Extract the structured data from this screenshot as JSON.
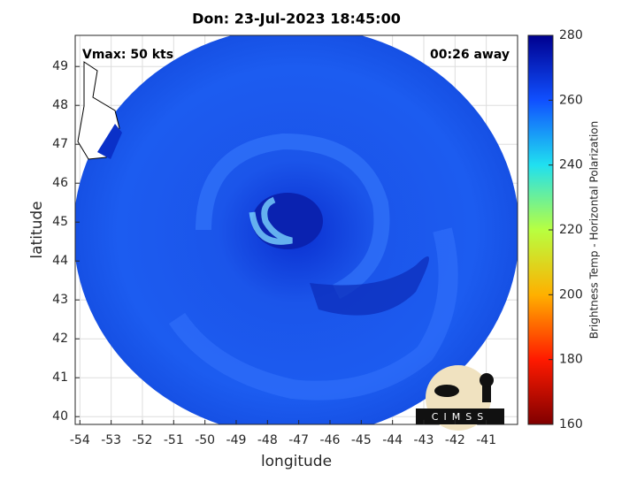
{
  "map": {
    "title": "Don: 23-Jul-2023 18:45:00",
    "vmax_label": "Vmax: 50 kts",
    "time_offset": "00:26 away",
    "xlabel": "longitude",
    "ylabel": "latitude",
    "xlim": [
      -54.15,
      -40
    ],
    "ylim": [
      39.8,
      49.8
    ],
    "xticks": [
      -54,
      -53,
      -52,
      -51,
      -50,
      -49,
      -48,
      -47,
      -46,
      -45,
      -44,
      -43,
      -42,
      -41
    ],
    "yticks": [
      40,
      41,
      42,
      43,
      44,
      45,
      46,
      47,
      48,
      49
    ],
    "grid": true,
    "colorbar": {
      "label": "Brightness Temp - Horizontal Polarization",
      "lim": [
        160,
        280
      ],
      "ticks": [
        160,
        180,
        200,
        220,
        240,
        260,
        280
      ],
      "colors": [
        "#800000",
        "#ff1a00",
        "#ffb000",
        "#b8ff40",
        "#20e0f0",
        "#1050ff",
        "#00008f"
      ]
    },
    "logo": "CIMSS"
  }
}
